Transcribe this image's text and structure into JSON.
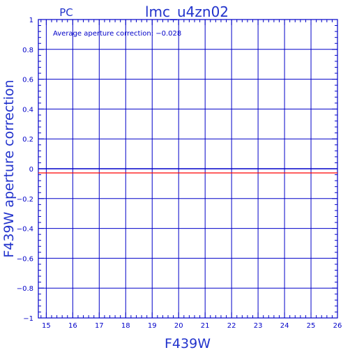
{
  "header": {
    "detector": "PC",
    "title": "lmc_u4zn02"
  },
  "chart_data": {
    "type": "line",
    "title": "lmc_u4zn02",
    "xlabel": "F439W",
    "ylabel": "F439W aperture correction",
    "xlim": [
      14.7,
      26
    ],
    "ylim": [
      -1,
      1
    ],
    "x_ticks": [
      "15",
      "16",
      "17",
      "18",
      "19",
      "20",
      "21",
      "22",
      "23",
      "24",
      "25",
      "26"
    ],
    "y_ticks": [
      "−1",
      "−0.8",
      "−0.6",
      "−0.4",
      "−0.2",
      "0",
      "0.2",
      "0.4",
      "0.6",
      "0.8",
      "1"
    ],
    "grid": true,
    "annotation": "Average aperture correction: −0.028",
    "series": [
      {
        "values": [
          -0.028,
          -0.028
        ],
        "x": [
          14.7,
          26
        ],
        "color": "#ff0000"
      }
    ],
    "reference_line": {
      "y": 0,
      "color": "#0000c8"
    }
  },
  "colors": {
    "axis": "#0000c8",
    "text": "#2233cc",
    "series": "#ff0000"
  }
}
